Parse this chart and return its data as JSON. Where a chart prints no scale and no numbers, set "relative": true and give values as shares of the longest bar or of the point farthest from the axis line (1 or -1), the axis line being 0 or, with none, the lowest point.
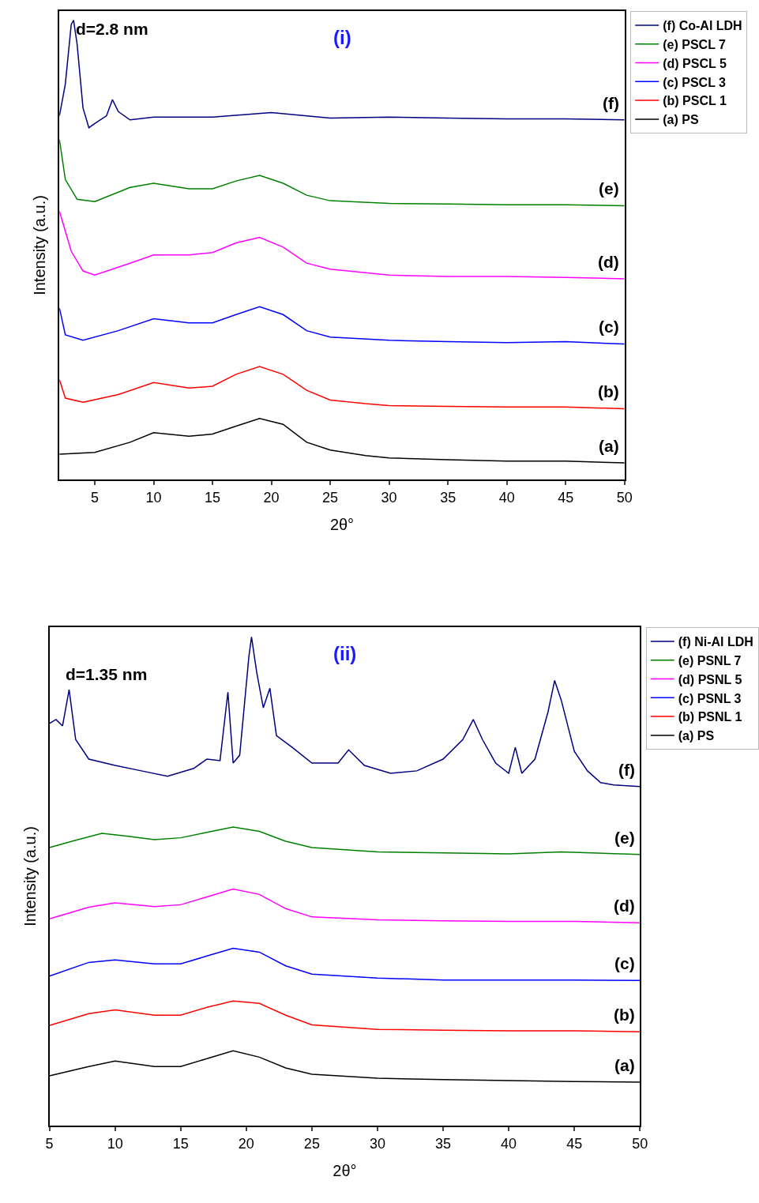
{
  "chart_data": [
    {
      "type": "line",
      "relative": true,
      "xlabel": "2θ°",
      "ylabel": "Intensity (a.u.)",
      "xlim": [
        2,
        50
      ],
      "xticks": [
        5,
        10,
        15,
        20,
        25,
        30,
        35,
        40,
        45,
        50
      ],
      "tick_labels": "x",
      "legend": "top right",
      "annotations": [
        "(i)",
        "d=2.8 nm",
        "(f)",
        "(e)",
        "(d)",
        "(c)",
        "(b)",
        "(a)"
      ],
      "series": [
        {
          "name": "(f) Co-Al LDH",
          "color": "#000080",
          "x": [
            2,
            2.5,
            3,
            3.2,
            3.5,
            4,
            4.5,
            5,
            6,
            6.5,
            7,
            8,
            10,
            15,
            20,
            25,
            30,
            35,
            40,
            45,
            50
          ],
          "values": [
            0.792,
            0.861,
            0.991,
            1.0,
            0.948,
            0.809,
            0.766,
            0.775,
            0.792,
            0.827,
            0.801,
            0.783,
            0.789,
            0.789,
            0.799,
            0.787,
            0.789,
            0.787,
            0.785,
            0.785,
            0.783
          ]
        },
        {
          "name": "(e) PSCL 7",
          "color": "#008000",
          "x": [
            2,
            2.5,
            3.5,
            5,
            8,
            10,
            13,
            15,
            17,
            19,
            21,
            23,
            25,
            30,
            35,
            40,
            45,
            50
          ],
          "values": [
            0.74,
            0.653,
            0.61,
            0.605,
            0.636,
            0.645,
            0.633,
            0.633,
            0.65,
            0.662,
            0.645,
            0.619,
            0.607,
            0.601,
            0.6,
            0.598,
            0.598,
            0.596
          ]
        },
        {
          "name": "(d) PSCL 5",
          "color": "#ff00ff",
          "x": [
            2,
            3,
            4,
            5,
            8,
            10,
            13,
            15,
            17,
            19,
            21,
            23,
            25,
            30,
            35,
            40,
            45,
            50
          ],
          "values": [
            0.584,
            0.497,
            0.454,
            0.445,
            0.471,
            0.489,
            0.489,
            0.494,
            0.515,
            0.527,
            0.506,
            0.471,
            0.458,
            0.445,
            0.442,
            0.442,
            0.44,
            0.437
          ]
        },
        {
          "name": "(c) PSCL 3",
          "color": "#0000ff",
          "x": [
            2,
            2.5,
            4,
            7,
            10,
            13,
            15,
            17,
            19,
            21,
            23,
            25,
            30,
            35,
            40,
            45,
            50
          ],
          "values": [
            0.373,
            0.315,
            0.303,
            0.324,
            0.35,
            0.341,
            0.341,
            0.359,
            0.376,
            0.359,
            0.324,
            0.31,
            0.303,
            0.3,
            0.298,
            0.3,
            0.295
          ]
        },
        {
          "name": "(b) PSCL 1",
          "color": "#ff0000",
          "x": [
            2,
            2.5,
            4,
            7,
            10,
            13,
            15,
            17,
            19,
            21,
            23,
            25,
            28,
            30,
            35,
            40,
            45,
            50
          ],
          "values": [
            0.217,
            0.177,
            0.168,
            0.185,
            0.211,
            0.199,
            0.203,
            0.229,
            0.246,
            0.229,
            0.194,
            0.173,
            0.165,
            0.161,
            0.159,
            0.158,
            0.158,
            0.154
          ]
        },
        {
          "name": "(a) PS",
          "color": "#000000",
          "x": [
            2,
            5,
            8,
            10,
            13,
            15,
            17,
            19,
            21,
            23,
            25,
            28,
            30,
            35,
            40,
            45,
            50
          ],
          "values": [
            0.055,
            0.059,
            0.081,
            0.102,
            0.094,
            0.099,
            0.116,
            0.133,
            0.12,
            0.081,
            0.064,
            0.052,
            0.047,
            0.043,
            0.04,
            0.04,
            0.036
          ]
        }
      ]
    },
    {
      "type": "line",
      "relative": true,
      "xlabel": "2θ°",
      "ylabel": "Intensity (a.u.)",
      "xlim": [
        5,
        50
      ],
      "xticks": [
        5,
        10,
        15,
        20,
        25,
        30,
        35,
        40,
        45,
        50
      ],
      "tick_labels": "x",
      "legend": "top right",
      "annotations": [
        "(ii)",
        "d=1.35 nm",
        "(f)",
        "(e)",
        "(d)",
        "(c)",
        "(b)",
        "(a)"
      ],
      "series": [
        {
          "name": "(f) Ni-Al LDH",
          "color": "#000080",
          "x": [
            5,
            5.5,
            6,
            6.5,
            7,
            8,
            10,
            12,
            14,
            16,
            17,
            18,
            18.6,
            19,
            19.5,
            20.2,
            20.4,
            20.8,
            21.3,
            21.8,
            22.3,
            23.5,
            25,
            27,
            27.8,
            29,
            31,
            33,
            35,
            36.5,
            37.3,
            38,
            39,
            40,
            40.5,
            41,
            42,
            43,
            43.5,
            44,
            45,
            46,
            47,
            48,
            50
          ],
          "values": [
            0.823,
            0.831,
            0.818,
            0.892,
            0.79,
            0.75,
            0.737,
            0.726,
            0.715,
            0.731,
            0.75,
            0.747,
            0.887,
            0.742,
            0.758,
            0.96,
            1.0,
            0.927,
            0.855,
            0.895,
            0.798,
            0.774,
            0.742,
            0.742,
            0.769,
            0.737,
            0.721,
            0.726,
            0.75,
            0.79,
            0.831,
            0.79,
            0.742,
            0.721,
            0.774,
            0.721,
            0.75,
            0.847,
            0.911,
            0.871,
            0.766,
            0.726,
            0.702,
            0.697,
            0.694
          ]
        },
        {
          "name": "(e) PSNL 7",
          "color": "#008000",
          "x": [
            5,
            7,
            9,
            11,
            13,
            15,
            17,
            19,
            21,
            23,
            25,
            30,
            35,
            40,
            44,
            50
          ],
          "values": [
            0.569,
            0.584,
            0.598,
            0.592,
            0.585,
            0.589,
            0.6,
            0.611,
            0.602,
            0.582,
            0.569,
            0.56,
            0.558,
            0.556,
            0.56,
            0.555
          ]
        },
        {
          "name": "(d) PSNL 5",
          "color": "#ff00ff",
          "x": [
            5,
            8,
            10,
            13,
            15,
            17,
            19,
            21,
            23,
            25,
            30,
            35,
            40,
            45,
            50
          ],
          "values": [
            0.423,
            0.447,
            0.456,
            0.448,
            0.452,
            0.468,
            0.484,
            0.473,
            0.444,
            0.427,
            0.421,
            0.419,
            0.418,
            0.418,
            0.415
          ]
        },
        {
          "name": "(c) PSNL 3",
          "color": "#0000ff",
          "x": [
            5,
            8,
            10,
            13,
            15,
            17,
            19,
            21,
            23,
            25,
            30,
            35,
            40,
            45,
            50
          ],
          "values": [
            0.306,
            0.334,
            0.339,
            0.331,
            0.331,
            0.347,
            0.363,
            0.355,
            0.327,
            0.31,
            0.302,
            0.298,
            0.298,
            0.298,
            0.297
          ]
        },
        {
          "name": "(b) PSNL 1",
          "color": "#ff0000",
          "x": [
            5,
            8,
            10,
            13,
            15,
            17,
            19,
            21,
            23,
            25,
            30,
            35,
            40,
            45,
            50
          ],
          "values": [
            0.205,
            0.229,
            0.237,
            0.226,
            0.226,
            0.242,
            0.255,
            0.25,
            0.226,
            0.206,
            0.197,
            0.195,
            0.194,
            0.194,
            0.192
          ]
        },
        {
          "name": "(a) PS",
          "color": "#000000",
          "x": [
            5,
            8,
            10,
            13,
            15,
            17,
            19,
            21,
            23,
            25,
            30,
            35,
            40,
            45,
            50
          ],
          "values": [
            0.102,
            0.121,
            0.132,
            0.121,
            0.121,
            0.137,
            0.153,
            0.14,
            0.118,
            0.105,
            0.097,
            0.094,
            0.092,
            0.09,
            0.089
          ]
        }
      ]
    }
  ]
}
